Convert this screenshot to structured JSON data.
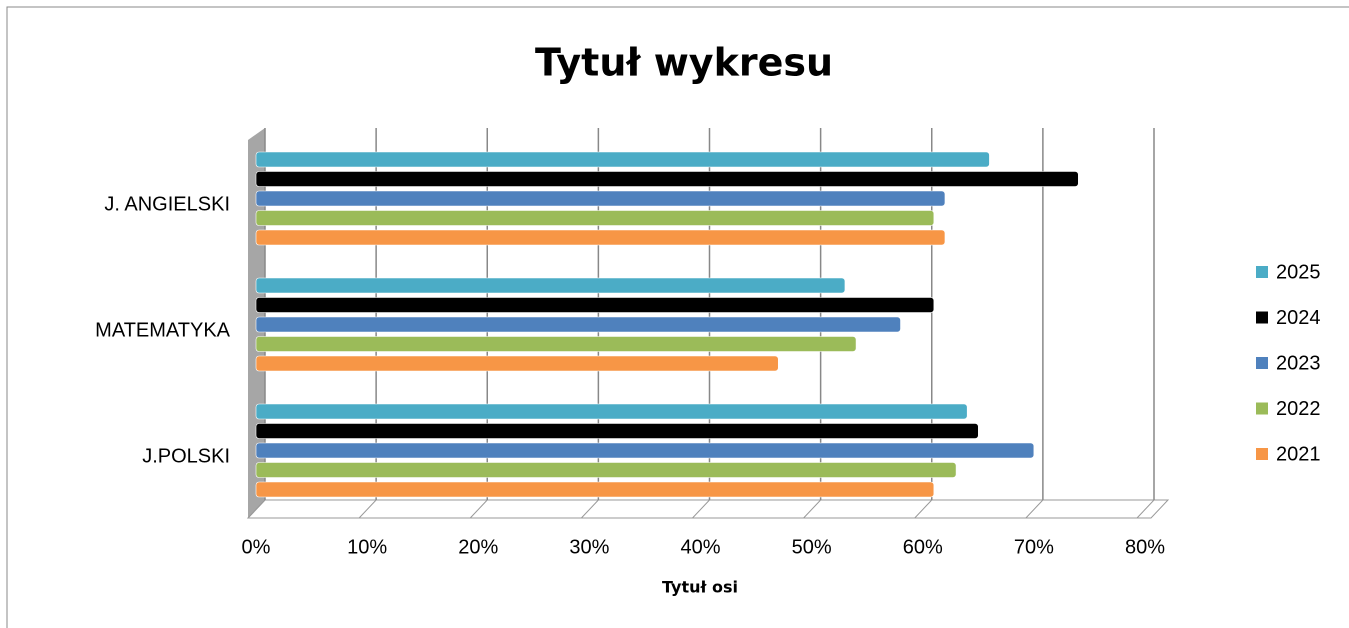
{
  "chart_data": {
    "type": "bar",
    "orientation": "horizontal",
    "title": "Tytuł wykresu",
    "x_label": "Tytuł osi",
    "categories": [
      "J.POLSKI",
      "MATEMATYKA",
      "J. ANGIELSKI"
    ],
    "series": [
      {
        "name": "2021",
        "color": "#f79646",
        "values": [
          61,
          47,
          62
        ]
      },
      {
        "name": "2022",
        "color": "#9bbb59",
        "values": [
          63,
          54,
          61
        ]
      },
      {
        "name": "2023",
        "color": "#4f81bd",
        "values": [
          70,
          58,
          62
        ]
      },
      {
        "name": "2024",
        "color": "#000000",
        "values": [
          65,
          61,
          74
        ]
      },
      {
        "name": "2025",
        "color": "#4bacc6",
        "values": [
          64,
          53,
          66
        ]
      }
    ],
    "xlim": [
      0,
      80
    ],
    "xticks": [
      {
        "value": 0,
        "label": "0%"
      },
      {
        "value": 10,
        "label": "10%"
      },
      {
        "value": 20,
        "label": "20%"
      },
      {
        "value": 30,
        "label": "30%"
      },
      {
        "value": 40,
        "label": "40%"
      },
      {
        "value": 50,
        "label": "50%"
      },
      {
        "value": 60,
        "label": "60%"
      },
      {
        "value": 70,
        "label": "70%"
      },
      {
        "value": 80,
        "label": "80%"
      }
    ],
    "grid": true,
    "legend": "right"
  }
}
